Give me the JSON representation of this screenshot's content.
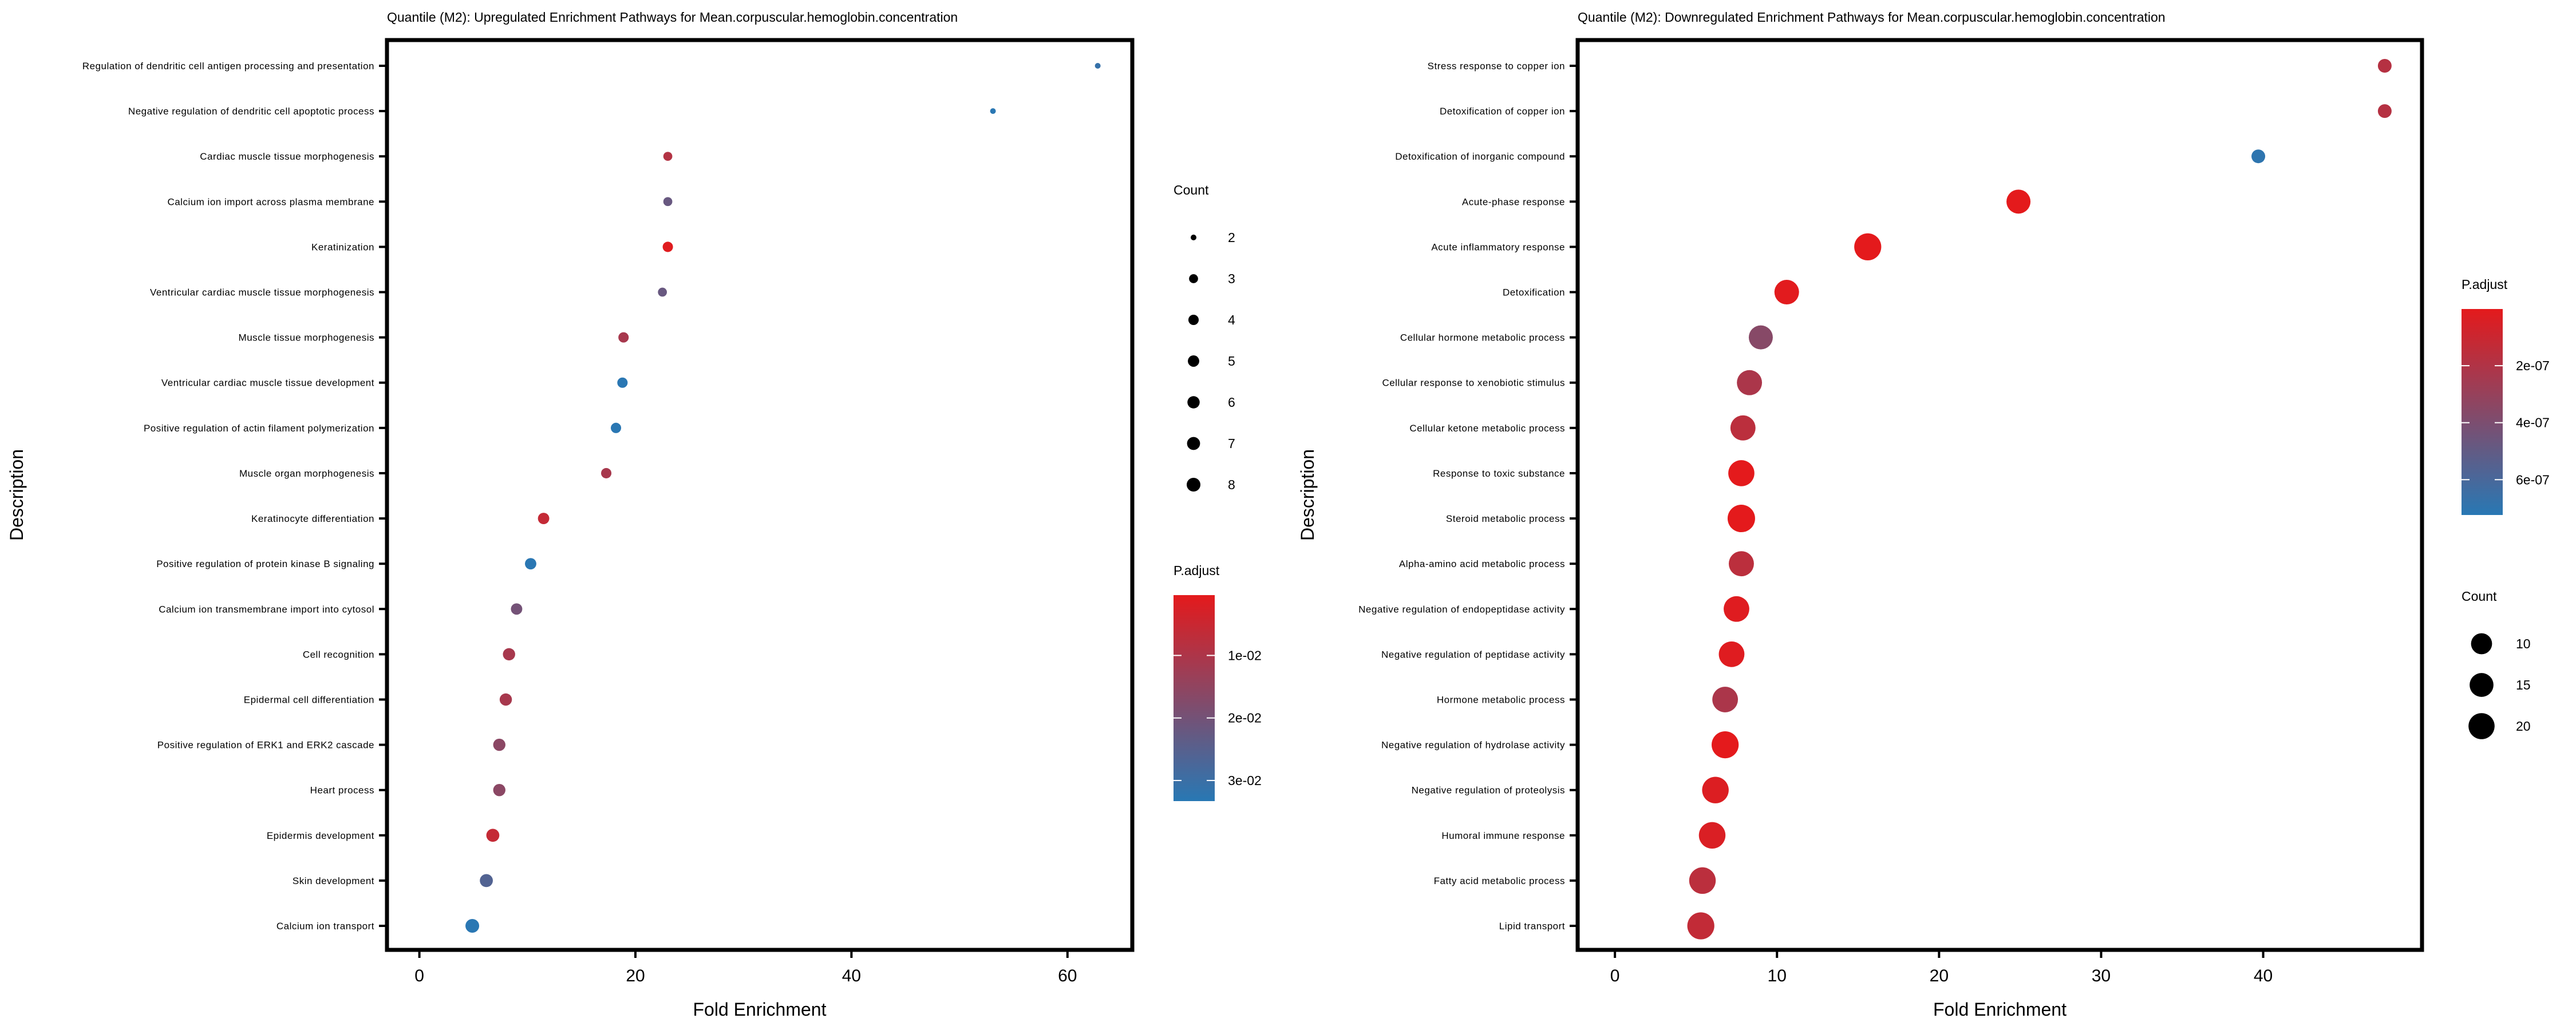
{
  "chart_data": [
    {
      "type": "scatter",
      "title": "Quantile (M2): Upregulated Enrichment Pathways for Mean.corpuscular.hemoglobin.concentration",
      "xlabel": "Fold Enrichment",
      "ylabel": "Description",
      "xlim": [
        -3,
        66
      ],
      "xticks": [
        0,
        20,
        40,
        60
      ],
      "grid": false,
      "categories": [
        "Regulation of dendritic cell antigen processing and presentation",
        "Negative regulation of dendritic cell apoptotic process",
        "Cardiac muscle tissue morphogenesis",
        "Calcium ion import across plasma membrane",
        "Keratinization",
        "Ventricular cardiac muscle tissue morphogenesis",
        "Muscle tissue morphogenesis",
        "Ventricular cardiac muscle tissue development",
        "Positive regulation of actin filament polymerization",
        "Muscle organ morphogenesis",
        "Keratinocyte differentiation",
        "Positive regulation of protein kinase B signaling",
        "Calcium ion transmembrane import into cytosol",
        "Cell recognition",
        "Epidermal cell differentiation",
        "Positive regulation of ERK1 and ERK2 cascade",
        "Heart process",
        "Epidermis development",
        "Skin development",
        "Calcium ion transport"
      ],
      "fold_enrichment": [
        62.8,
        53.1,
        23.0,
        23.0,
        23.0,
        22.5,
        18.9,
        18.8,
        18.2,
        17.3,
        11.5,
        10.3,
        9.0,
        8.3,
        8.0,
        7.4,
        7.4,
        6.8,
        6.2,
        4.9
      ],
      "count": [
        2,
        2,
        3,
        3,
        4,
        3,
        4,
        4,
        4,
        4,
        5,
        5,
        5,
        6,
        6,
        6,
        6,
        7,
        7,
        8
      ],
      "p_adjust": [
        0.031,
        0.033,
        0.009,
        0.022,
        0.001,
        0.022,
        0.011,
        0.033,
        0.033,
        0.011,
        0.006,
        0.033,
        0.02,
        0.011,
        0.011,
        0.016,
        0.016,
        0.006,
        0.026,
        0.033
      ],
      "size_legend": {
        "title": "Count",
        "values": [
          2,
          3,
          4,
          5,
          6,
          7,
          8
        ]
      },
      "color_legend": {
        "title": "P.adjust",
        "ticks": [
          "1e-02",
          "2e-02",
          "3e-02"
        ],
        "tick_values": [
          0.01,
          0.02,
          0.03
        ],
        "range": [
          0.00035,
          0.0333
        ],
        "low_color": "#E41A1C",
        "high_color": "#2878B4"
      }
    },
    {
      "type": "scatter",
      "title": "Quantile (M2): Downregulated Enrichment Pathways for Mean.corpuscular.hemoglobin.concentration",
      "xlabel": "Fold Enrichment",
      "ylabel": "Description",
      "xlim": [
        -2.3,
        49.8
      ],
      "xticks": [
        0,
        10,
        20,
        30,
        40
      ],
      "grid": false,
      "categories": [
        "Stress response to copper ion",
        "Detoxification of copper ion",
        "Detoxification of inorganic compound",
        "Acute-phase response",
        "Acute inflammatory response",
        "Detoxification",
        "Cellular hormone metabolic process",
        "Cellular response to xenobiotic stimulus",
        "Cellular ketone metabolic process",
        "Response to toxic substance",
        "Steroid metabolic process",
        "Alpha-amino acid metabolic process",
        "Negative regulation of endopeptidase activity",
        "Negative regulation of peptidase activity",
        "Hormone metabolic process",
        "Negative regulation of hydrolase activity",
        "Negative regulation of proteolysis",
        "Humoral immune response",
        "Fatty acid metabolic process",
        "Lipid transport"
      ],
      "fold_enrichment": [
        47.5,
        47.5,
        39.7,
        24.9,
        15.6,
        10.6,
        9.0,
        8.3,
        7.9,
        7.8,
        7.8,
        7.8,
        7.5,
        7.2,
        6.8,
        6.8,
        6.2,
        6.0,
        5.4,
        5.3
      ],
      "count": [
        4,
        4,
        4,
        13,
        19,
        14,
        13,
        15,
        15,
        17,
        20,
        15,
        16,
        16,
        16,
        19,
        18,
        18,
        18,
        19
      ],
      "p_adjust": [
        1.8e-07,
        1.8e-07,
        7e-07,
        1e-09,
        1e-09,
        1e-08,
        3.6e-07,
        2.2e-07,
        1.6e-07,
        1e-09,
        1e-09,
        1.6e-07,
        2e-08,
        2e-08,
        2.2e-07,
        1e-09,
        3e-08,
        4e-08,
        1.6e-07,
        1.3e-07
      ],
      "size_legend": {
        "title": "Count",
        "values": [
          10,
          15,
          20
        ]
      },
      "color_legend": {
        "title": "P.adjust",
        "ticks": [
          "2e-07",
          "4e-07",
          "6e-07"
        ],
        "tick_values": [
          2e-07,
          4e-07,
          6e-07
        ],
        "range": [
          1e-09,
          7.24e-07
        ],
        "low_color": "#E41A1C",
        "high_color": "#2878B4"
      }
    }
  ]
}
